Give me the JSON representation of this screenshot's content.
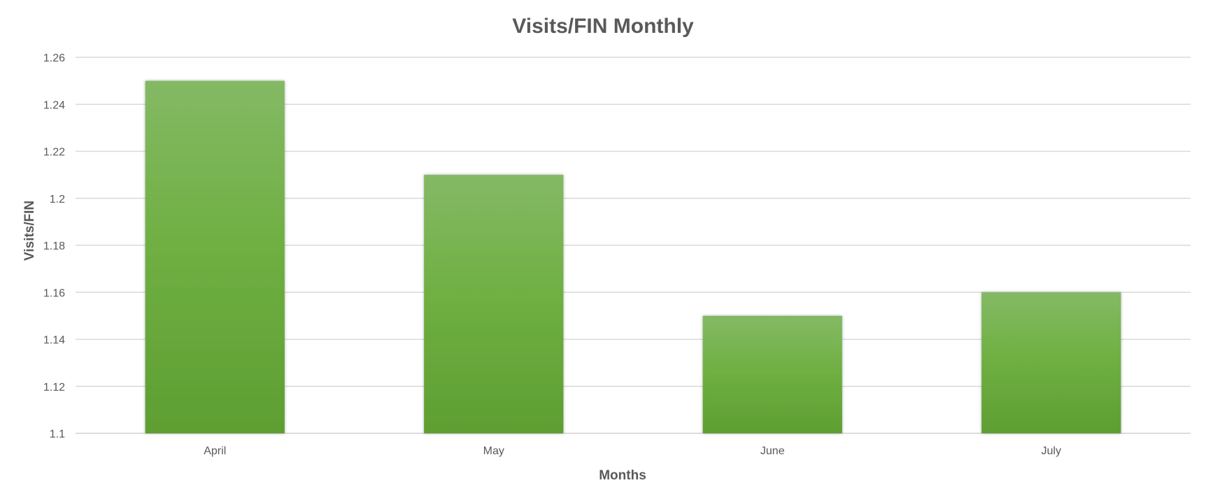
{
  "chart_data": {
    "type": "bar",
    "title": "Visits/FIN Monthly",
    "xlabel": "Months",
    "ylabel": "Visits/FIN",
    "categories": [
      "April",
      "May",
      "June",
      "July"
    ],
    "values": [
      1.25,
      1.21,
      1.15,
      1.16
    ],
    "ylim": [
      1.1,
      1.26
    ],
    "yticks": [
      1.1,
      1.12,
      1.14,
      1.16,
      1.18,
      1.2,
      1.22,
      1.24,
      1.26
    ],
    "ytick_labels": [
      "1.1",
      "1.12",
      "1.14",
      "1.16",
      "1.18",
      "1.2",
      "1.22",
      "1.24",
      "1.26"
    ],
    "grid": true,
    "legend": "none",
    "colors": {
      "bar_top": "#84b965",
      "bar_mid": "#70b043",
      "bar_bottom": "#5e9e32",
      "text": "#595959",
      "grid": "#d9d9d9"
    }
  }
}
